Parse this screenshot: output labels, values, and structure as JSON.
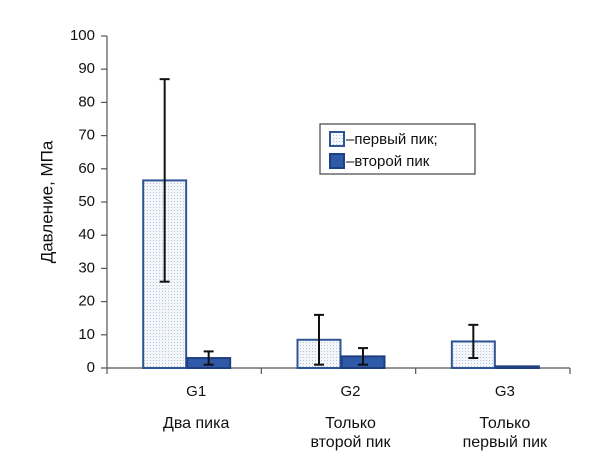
{
  "chart_data": {
    "type": "bar",
    "y_label": "Давление, МПа",
    "categories": [
      "G1",
      "G2",
      "G3"
    ],
    "category_descriptions": [
      [
        "Два пика"
      ],
      [
        "Только",
        "второй пик"
      ],
      [
        "Только",
        "первый пик"
      ]
    ],
    "series": [
      {
        "name": "–первый пик;",
        "color": "#eef2f8",
        "edge": "#2f5597",
        "values": [
          56.5,
          8.5,
          8
        ],
        "errors": [
          30.5,
          7.5,
          5
        ]
      },
      {
        "name": "–второй пик",
        "color": "#2e5aa8",
        "edge": "#1f3f80",
        "values": [
          3,
          3.5,
          0.5
        ],
        "errors": [
          2,
          2.5,
          null
        ]
      }
    ],
    "ylim": [
      0,
      100
    ],
    "yticks": [
      0,
      10,
      20,
      30,
      40,
      50,
      60,
      70,
      80,
      90,
      100
    ],
    "grid": false,
    "legend": "center-right"
  }
}
